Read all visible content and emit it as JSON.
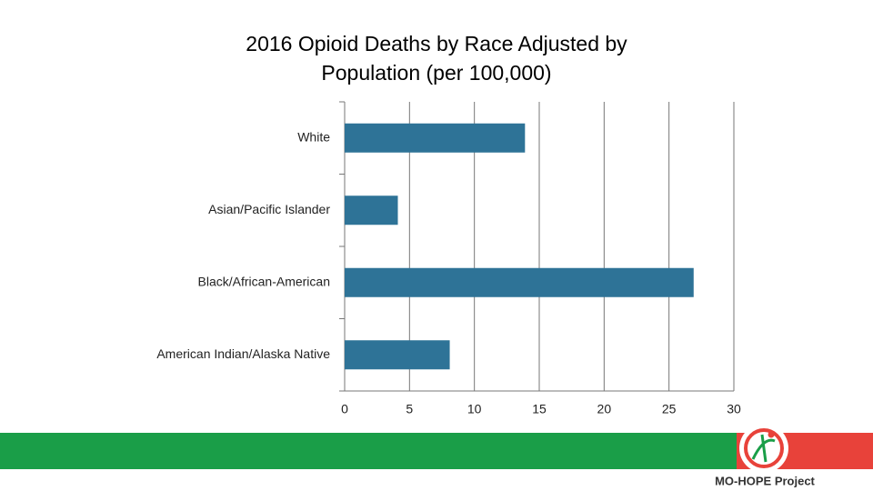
{
  "chart_data": {
    "type": "barh",
    "title": "2016 Opioid Deaths by Race Adjusted by Population (per 100,000)",
    "categories": [
      "White",
      "Asian/Pacific Islander",
      "Black/African-American",
      "American Indian/Alaska Native"
    ],
    "values": [
      13.9,
      4.1,
      26.9,
      8.1
    ],
    "color": "#2e7397",
    "xlim": [
      0,
      30
    ],
    "xticks": [
      0,
      5,
      10,
      15,
      20,
      25,
      30
    ],
    "grid": true
  },
  "footer": {
    "brand": "MO-HOPE Project"
  }
}
